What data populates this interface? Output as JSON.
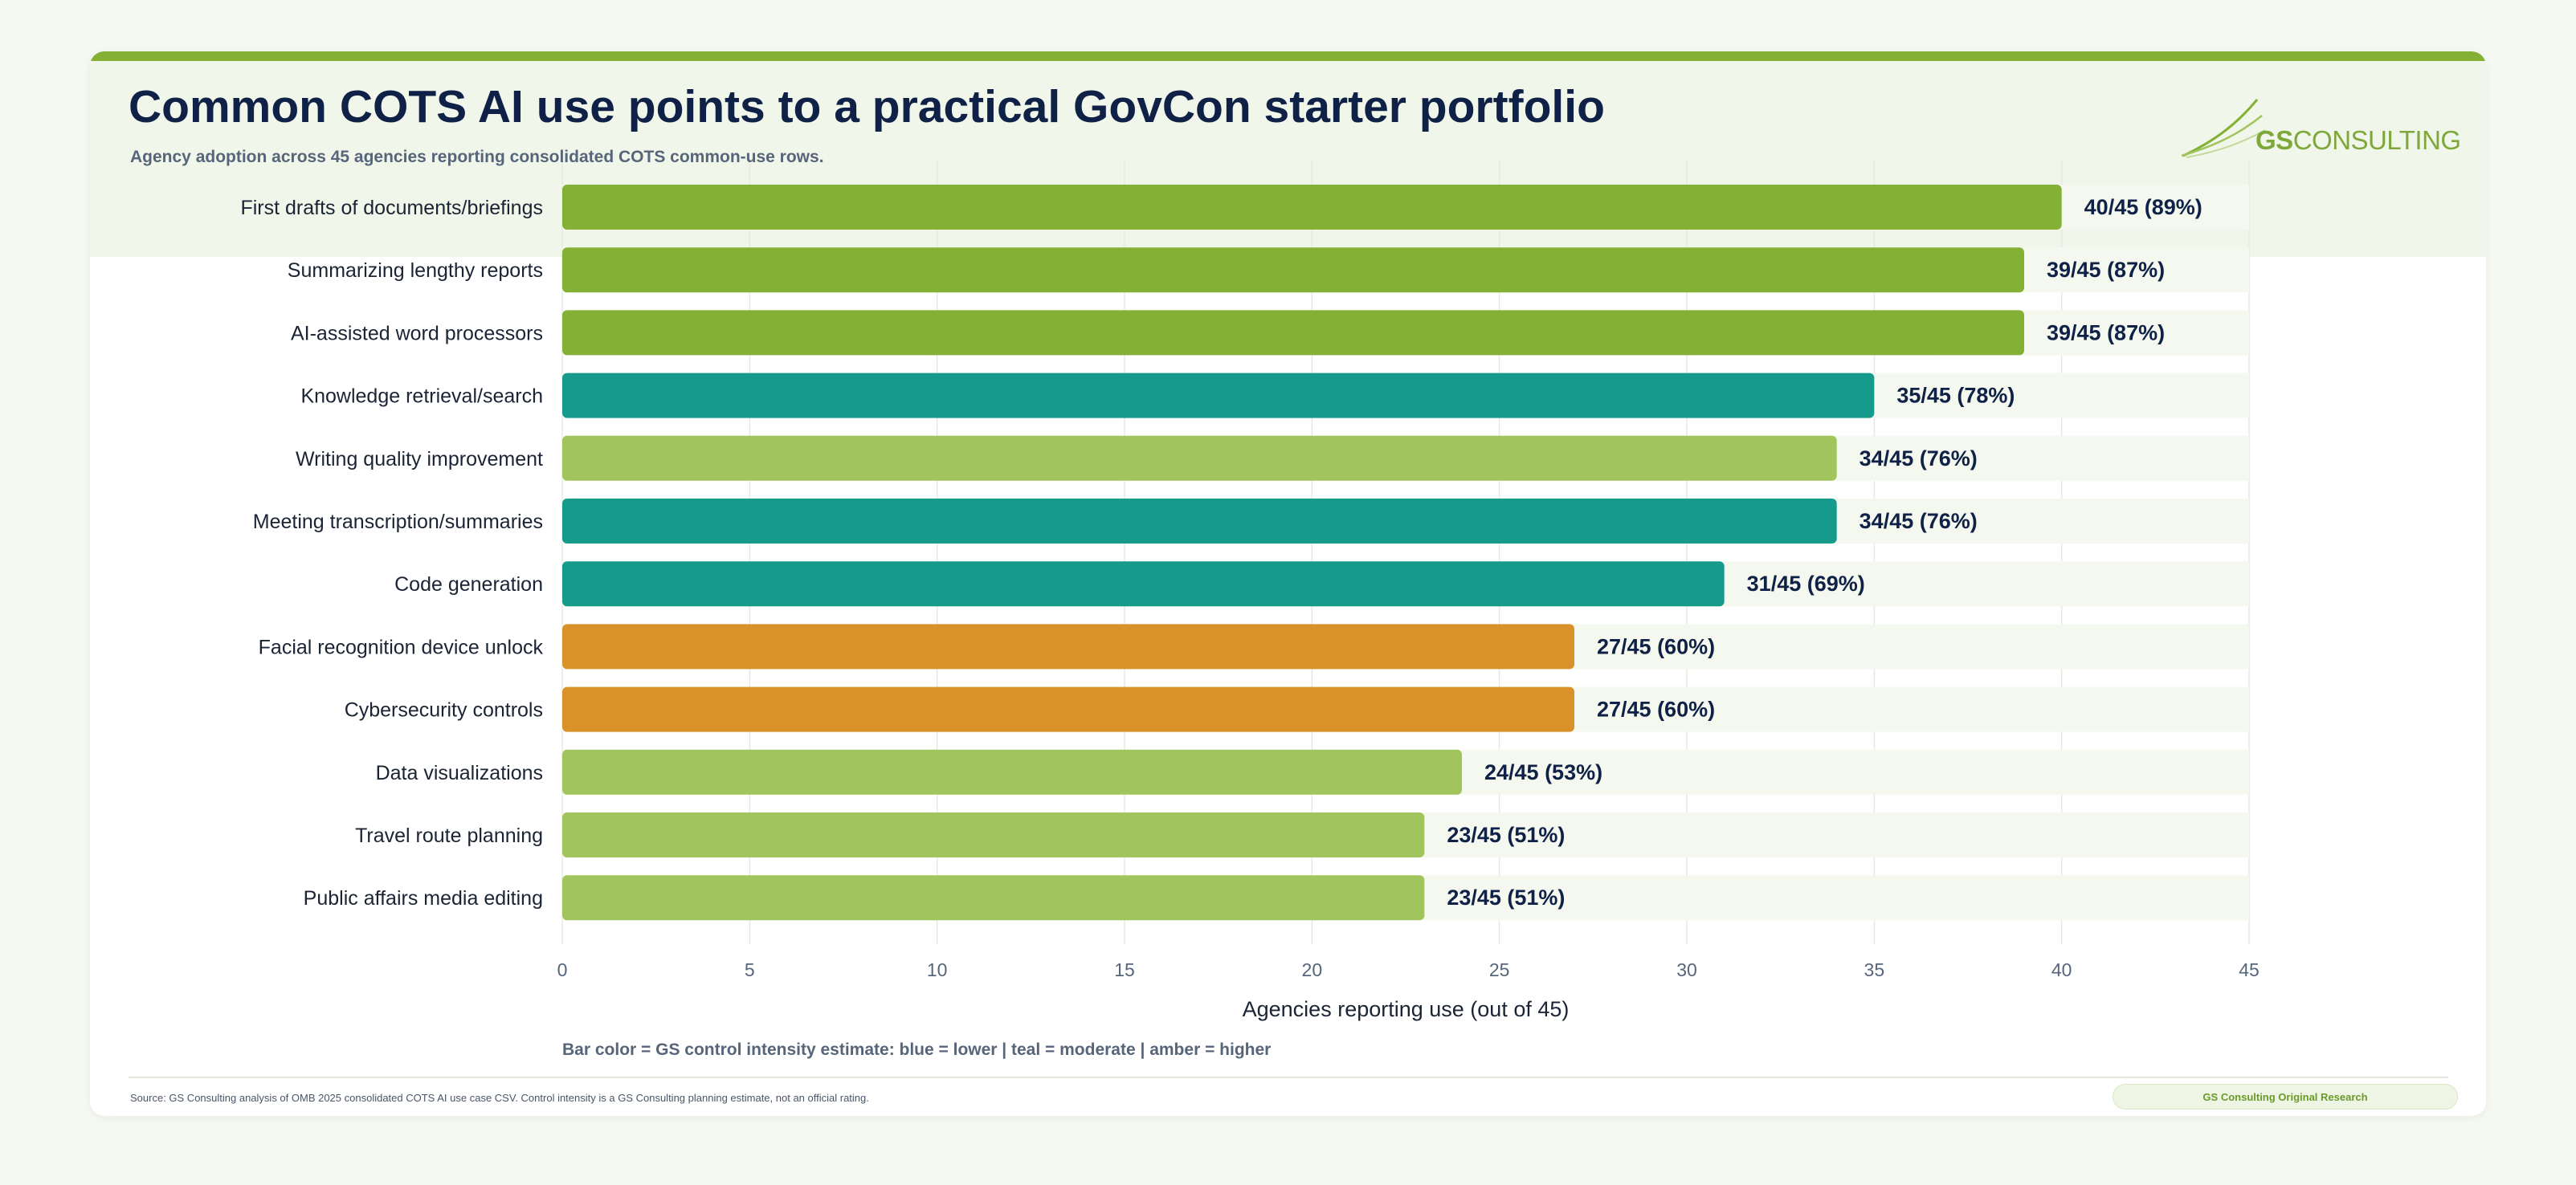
{
  "header": {
    "title": "Common COTS AI use points to a practical GovCon starter portfolio",
    "subtitle": "Agency adoption across 45 agencies reporting consolidated COTS common-use rows."
  },
  "logo": {
    "brand_a": "GS",
    "brand_b": "CONSULTING"
  },
  "chart_data": {
    "type": "bar",
    "orientation": "horizontal",
    "categories": [
      "First drafts of documents/briefings",
      "Summarizing lengthy reports",
      "AI-assisted word processors",
      "Knowledge retrieval/search",
      "Writing quality improvement",
      "Meeting transcription/summaries",
      "Code generation",
      "Facial recognition device unlock",
      "Cybersecurity controls",
      "Data visualizations",
      "Travel route planning",
      "Public affairs media editing"
    ],
    "values": [
      40,
      39,
      39,
      35,
      34,
      34,
      31,
      27,
      27,
      24,
      23,
      23
    ],
    "data_labels": [
      "40/45 (89%)",
      "39/45 (87%)",
      "39/45 (87%)",
      "35/45 (78%)",
      "34/45 (76%)",
      "34/45 (76%)",
      "31/45 (69%)",
      "27/45 (60%)",
      "27/45 (60%)",
      "24/45 (53%)",
      "23/45 (51%)",
      "23/45 (51%)"
    ],
    "bar_colors": [
      "#84b135",
      "#84b135",
      "#84b135",
      "#169a8c",
      "#a2c45c",
      "#169a8c",
      "#169a8c",
      "#d9922a",
      "#d9922a",
      "#a2c45c",
      "#a2c45c",
      "#a2c45c"
    ],
    "xlim": [
      0,
      45
    ],
    "xticks": [
      0,
      5,
      10,
      15,
      20,
      25,
      30,
      35,
      40,
      45
    ],
    "xlabel": "Agencies reporting use (out of 45)",
    "grid": "vertical"
  },
  "footnote": "Bar color = GS control intensity estimate: blue = lower | teal = moderate | amber = higher",
  "source": "Source: GS Consulting analysis of OMB 2025 consolidated COTS AI use case CSV. Control intensity is a GS Consulting planning estimate, not an official rating.",
  "badge": "GS Consulting Original Research"
}
